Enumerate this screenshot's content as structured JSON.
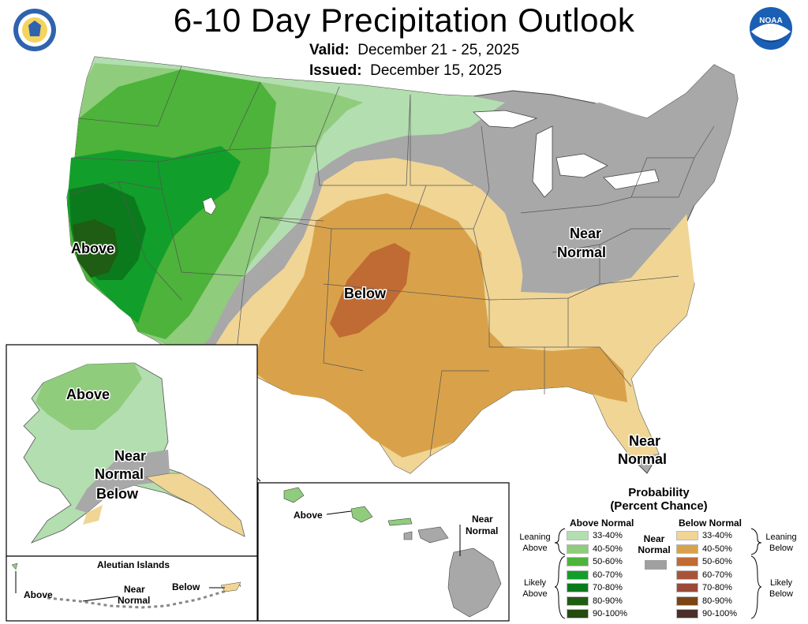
{
  "header": {
    "title": "6-10 Day Precipitation Outlook",
    "valid_label": "Valid:",
    "valid_value": "December 21 - 25, 2025",
    "issued_label": "Issued:",
    "issued_value": "December 15, 2025"
  },
  "logos": {
    "left": "seal-icon",
    "right": "noaa-logo-icon",
    "noaa_text": "NOAA"
  },
  "map_labels": {
    "conus_above": "Above",
    "conus_below": "Below",
    "conus_near_ne": "Near\nNormal",
    "conus_near_ne_1": "Near",
    "conus_near_ne_2": "Normal",
    "conus_near_fl_1": "Near",
    "conus_near_fl_2": "Normal",
    "ak_above": "Above",
    "ak_near_1": "Near",
    "ak_near_2": "Normal",
    "ak_below": "Below",
    "aleutian_title": "Aleutian Islands",
    "aleutian_above": "Above",
    "aleutian_near_1": "Near",
    "aleutian_near_2": "Normal",
    "aleutian_below": "Below",
    "hi_above": "Above",
    "hi_near_1": "Near",
    "hi_near_2": "Normal"
  },
  "legend": {
    "title_1": "Probability",
    "title_2": "(Percent Chance)",
    "above_head": "Above Normal",
    "below_head": "Below Normal",
    "near_head_1": "Near",
    "near_head_2": "Normal",
    "near_color": "#a0a0a0",
    "leaning_above": [
      "Leaning",
      "Above"
    ],
    "likely_above": [
      "Likely",
      "Above"
    ],
    "leaning_below": [
      "Leaning",
      "Below"
    ],
    "likely_below": [
      "Likely",
      "Below"
    ],
    "above": [
      {
        "range": "33-40%",
        "color": "#b3deb0"
      },
      {
        "range": "40-50%",
        "color": "#8fcc7c"
      },
      {
        "range": "50-60%",
        "color": "#4db33a"
      },
      {
        "range": "60-70%",
        "color": "#129e2b"
      },
      {
        "range": "70-80%",
        "color": "#0b7a1c"
      },
      {
        "range": "80-90%",
        "color": "#1f5c14"
      },
      {
        "range": "90-100%",
        "color": "#234a0f"
      }
    ],
    "below": [
      {
        "range": "33-40%",
        "color": "#f0d595"
      },
      {
        "range": "40-50%",
        "color": "#d9a24a"
      },
      {
        "range": "50-60%",
        "color": "#bf6b33"
      },
      {
        "range": "60-70%",
        "color": "#a8543a"
      },
      {
        "range": "70-80%",
        "color": "#9a4a38"
      },
      {
        "range": "80-90%",
        "color": "#7a4513"
      },
      {
        "range": "90-100%",
        "color": "#4a2f28"
      }
    ]
  }
}
